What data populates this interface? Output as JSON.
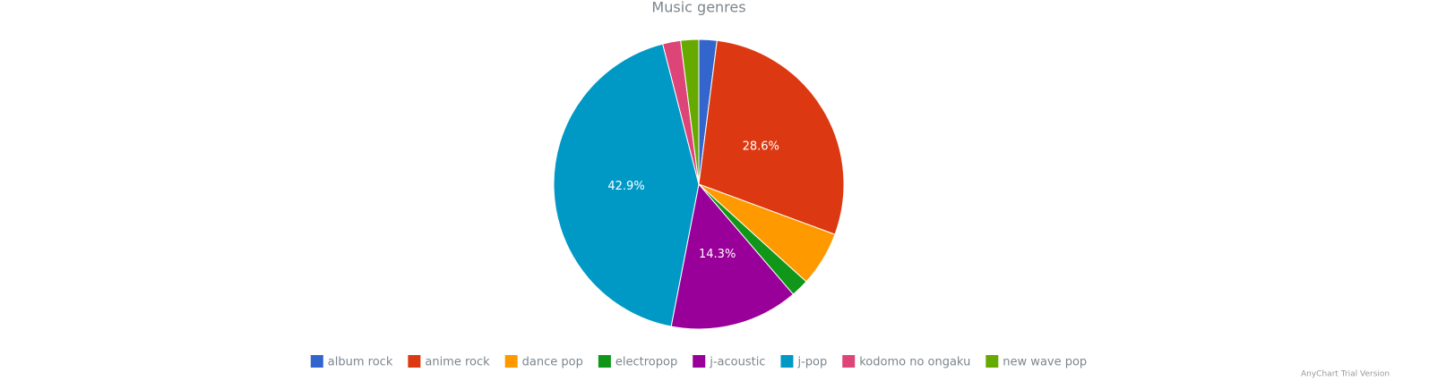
{
  "chart_data": {
    "type": "pie",
    "title": "Music genres",
    "categories": [
      "album rock",
      "anime rock",
      "dance pop",
      "electropop",
      "j-acoustic",
      "j-pop",
      "kodomo no ongaku",
      "new wave pop"
    ],
    "values": [
      2.0,
      28.6,
      6.1,
      2.0,
      14.3,
      42.9,
      2.0,
      2.0
    ],
    "value_labels": [
      null,
      "28.6%",
      null,
      null,
      "14.3%",
      "42.9%",
      null,
      null
    ],
    "colors": [
      "#3366cc",
      "#dc3912",
      "#ff9900",
      "#109618",
      "#990099",
      "#0099c6",
      "#dd4477",
      "#66aa00"
    ],
    "legend": "bottom",
    "watermark": "AnyChart Trial Version"
  }
}
